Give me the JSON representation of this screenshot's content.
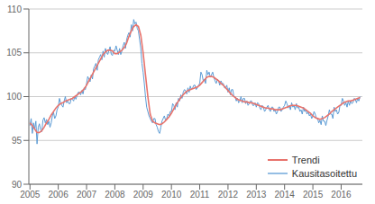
{
  "chart_data": {
    "type": "line",
    "xlim": [
      2004.96,
      2016.75
    ],
    "xticks": [
      2005,
      2006,
      2007,
      2008,
      2009,
      2010,
      2011,
      2012,
      2013,
      2014,
      2015,
      2016
    ],
    "ylim": [
      90,
      110
    ],
    "yticks": [
      90,
      95,
      100,
      105,
      110
    ],
    "grid": true,
    "legend": "lower right",
    "series": [
      {
        "name": "Trendi",
        "color": "#e8736c",
        "x": [
          2005.0,
          2005.083,
          2005.167,
          2005.25,
          2005.333,
          2005.417,
          2005.5,
          2005.583,
          2005.667,
          2005.75,
          2005.833,
          2005.917,
          2006.0,
          2006.083,
          2006.167,
          2006.25,
          2006.333,
          2006.417,
          2006.5,
          2006.583,
          2006.667,
          2006.75,
          2006.833,
          2006.917,
          2007.0,
          2007.083,
          2007.167,
          2007.25,
          2007.333,
          2007.417,
          2007.5,
          2007.583,
          2007.667,
          2007.75,
          2007.833,
          2007.917,
          2008.0,
          2008.083,
          2008.167,
          2008.25,
          2008.333,
          2008.417,
          2008.5,
          2008.583,
          2008.667,
          2008.75,
          2008.833,
          2008.917,
          2009.0,
          2009.083,
          2009.167,
          2009.25,
          2009.333,
          2009.417,
          2009.5,
          2009.583,
          2009.667,
          2009.75,
          2009.833,
          2009.917,
          2010.0,
          2010.083,
          2010.167,
          2010.25,
          2010.333,
          2010.417,
          2010.5,
          2010.583,
          2010.667,
          2010.75,
          2010.833,
          2010.917,
          2011.0,
          2011.083,
          2011.167,
          2011.25,
          2011.333,
          2011.417,
          2011.5,
          2011.583,
          2011.667,
          2011.75,
          2011.833,
          2011.917,
          2012.0,
          2012.083,
          2012.167,
          2012.25,
          2012.333,
          2012.417,
          2012.5,
          2012.583,
          2012.667,
          2012.75,
          2012.833,
          2012.917,
          2013.0,
          2013.083,
          2013.167,
          2013.25,
          2013.333,
          2013.417,
          2013.5,
          2013.583,
          2013.667,
          2013.75,
          2013.833,
          2013.917,
          2014.0,
          2014.083,
          2014.167,
          2014.25,
          2014.333,
          2014.417,
          2014.5,
          2014.583,
          2014.667,
          2014.75,
          2014.833,
          2014.917,
          2015.0,
          2015.083,
          2015.167,
          2015.25,
          2015.333,
          2015.417,
          2015.5,
          2015.583,
          2015.667,
          2015.75,
          2015.833,
          2015.917,
          2016.0,
          2016.083,
          2016.167,
          2016.25,
          2016.333,
          2016.417,
          2016.5,
          2016.583,
          2016.667
        ],
        "values": [
          97.0,
          96.7,
          96.3,
          95.9,
          95.9,
          96.1,
          96.5,
          97.0,
          97.4,
          97.9,
          98.3,
          98.7,
          99.0,
          99.2,
          99.3,
          99.5,
          99.6,
          99.7,
          99.8,
          100.0,
          100.2,
          100.4,
          100.6,
          100.9,
          101.3,
          101.8,
          102.3,
          102.8,
          103.3,
          103.8,
          104.3,
          104.8,
          105.1,
          105.3,
          105.3,
          105.2,
          104.9,
          104.9,
          105.1,
          105.3,
          105.6,
          106.1,
          106.9,
          107.5,
          108.0,
          108.2,
          108.0,
          107.0,
          105.0,
          102.5,
          100.0,
          98.0,
          97.2,
          97.0,
          96.9,
          96.8,
          96.9,
          97.1,
          97.4,
          97.7,
          98.1,
          98.6,
          99.1,
          99.5,
          99.9,
          100.2,
          100.5,
          100.7,
          100.8,
          100.9,
          101.0,
          101.1,
          101.3,
          101.6,
          101.9,
          102.2,
          102.3,
          102.3,
          102.2,
          102.0,
          101.8,
          101.5,
          101.3,
          101.0,
          100.7,
          100.4,
          100.1,
          99.9,
          99.7,
          99.6,
          99.5,
          99.4,
          99.4,
          99.3,
          99.3,
          99.2,
          99.1,
          99.0,
          98.9,
          98.8,
          98.7,
          98.7,
          98.6,
          98.6,
          98.5,
          98.5,
          98.5,
          98.6,
          98.7,
          98.8,
          98.9,
          99.0,
          99.0,
          99.0,
          98.9,
          98.8,
          98.7,
          98.5,
          98.3,
          98.1,
          97.8,
          97.6,
          97.5,
          97.4,
          97.5,
          97.6,
          97.8,
          98.0,
          98.3,
          98.5,
          98.7,
          98.9,
          99.1,
          99.3,
          99.4,
          99.5,
          99.5,
          99.6,
          99.7,
          99.8,
          99.9
        ]
      },
      {
        "name": "Kausitasoitettu",
        "color": "#5b9bd5",
        "x": [
          2005.0,
          2005.042,
          2005.083,
          2005.125,
          2005.167,
          2005.208,
          2005.25,
          2005.292,
          2005.333,
          2005.375,
          2005.417,
          2005.458,
          2005.5,
          2005.542,
          2005.583,
          2005.625,
          2005.667,
          2005.708,
          2005.75,
          2005.792,
          2005.833,
          2005.875,
          2005.917,
          2005.958,
          2006.0,
          2006.042,
          2006.083,
          2006.125,
          2006.167,
          2006.208,
          2006.25,
          2006.292,
          2006.333,
          2006.375,
          2006.417,
          2006.458,
          2006.5,
          2006.542,
          2006.583,
          2006.625,
          2006.667,
          2006.708,
          2006.75,
          2006.792,
          2006.833,
          2006.875,
          2006.917,
          2006.958,
          2007.0,
          2007.042,
          2007.083,
          2007.125,
          2007.167,
          2007.208,
          2007.25,
          2007.292,
          2007.333,
          2007.375,
          2007.417,
          2007.458,
          2007.5,
          2007.542,
          2007.583,
          2007.625,
          2007.667,
          2007.708,
          2007.75,
          2007.792,
          2007.833,
          2007.875,
          2007.917,
          2007.958,
          2008.0,
          2008.042,
          2008.083,
          2008.125,
          2008.167,
          2008.208,
          2008.25,
          2008.292,
          2008.333,
          2008.375,
          2008.417,
          2008.458,
          2008.5,
          2008.542,
          2008.583,
          2008.625,
          2008.667,
          2008.708,
          2008.75,
          2008.792,
          2008.833,
          2008.875,
          2008.917,
          2008.958,
          2009.0,
          2009.042,
          2009.083,
          2009.125,
          2009.167,
          2009.208,
          2009.25,
          2009.292,
          2009.333,
          2009.375,
          2009.417,
          2009.458,
          2009.5,
          2009.542,
          2009.583,
          2009.625,
          2009.667,
          2009.708,
          2009.75,
          2009.792,
          2009.833,
          2009.875,
          2009.917,
          2009.958,
          2010.0,
          2010.042,
          2010.083,
          2010.125,
          2010.167,
          2010.208,
          2010.25,
          2010.292,
          2010.333,
          2010.375,
          2010.417,
          2010.458,
          2010.5,
          2010.542,
          2010.583,
          2010.625,
          2010.667,
          2010.708,
          2010.75,
          2010.792,
          2010.833,
          2010.875,
          2010.917,
          2010.958,
          2011.0,
          2011.042,
          2011.083,
          2011.125,
          2011.167,
          2011.208,
          2011.25,
          2011.292,
          2011.333,
          2011.375,
          2011.417,
          2011.458,
          2011.5,
          2011.542,
          2011.583,
          2011.625,
          2011.667,
          2011.708,
          2011.75,
          2011.792,
          2011.833,
          2011.875,
          2011.917,
          2011.958,
          2012.0,
          2012.042,
          2012.083,
          2012.125,
          2012.167,
          2012.208,
          2012.25,
          2012.292,
          2012.333,
          2012.375,
          2012.417,
          2012.458,
          2012.5,
          2012.542,
          2012.583,
          2012.625,
          2012.667,
          2012.708,
          2012.75,
          2012.792,
          2012.833,
          2012.875,
          2012.917,
          2012.958,
          2013.0,
          2013.042,
          2013.083,
          2013.125,
          2013.167,
          2013.208,
          2013.25,
          2013.292,
          2013.333,
          2013.375,
          2013.417,
          2013.458,
          2013.5,
          2013.542,
          2013.583,
          2013.625,
          2013.667,
          2013.708,
          2013.75,
          2013.792,
          2013.833,
          2013.875,
          2013.917,
          2013.958,
          2014.0,
          2014.042,
          2014.083,
          2014.125,
          2014.167,
          2014.208,
          2014.25,
          2014.292,
          2014.333,
          2014.375,
          2014.417,
          2014.458,
          2014.5,
          2014.542,
          2014.583,
          2014.625,
          2014.667,
          2014.708,
          2014.75,
          2014.792,
          2014.833,
          2014.875,
          2014.917,
          2014.958,
          2015.0,
          2015.042,
          2015.083,
          2015.125,
          2015.167,
          2015.208,
          2015.25,
          2015.292,
          2015.333,
          2015.375,
          2015.417,
          2015.458,
          2015.5,
          2015.542,
          2015.583,
          2015.625,
          2015.667,
          2015.708,
          2015.75,
          2015.792,
          2015.833,
          2015.875,
          2015.917,
          2015.958,
          2016.0,
          2016.042,
          2016.083,
          2016.125,
          2016.167,
          2016.208,
          2016.25,
          2016.292,
          2016.333,
          2016.375,
          2016.417,
          2016.458,
          2016.5,
          2016.542,
          2016.583,
          2016.625,
          2016.667
        ],
        "values": [
          96.7,
          97.5,
          95.8,
          97.0,
          96.3,
          97.2,
          94.6,
          96.5,
          96.9,
          96.2,
          96.0,
          97.3,
          97.6,
          97.0,
          97.4,
          96.8,
          97.2,
          96.5,
          97.0,
          97.8,
          98.2,
          97.5,
          97.8,
          98.5,
          98.8,
          99.8,
          99.3,
          99.0,
          98.8,
          99.5,
          100.0,
          99.3,
          99.5,
          99.2,
          99.2,
          99.8,
          99.7,
          99.5,
          100.0,
          99.7,
          100.2,
          100.5,
          100.5,
          100.2,
          100.7,
          100.3,
          101.0,
          100.8,
          101.5,
          102.3,
          102.0,
          101.7,
          102.5,
          102.0,
          103.2,
          103.5,
          103.8,
          103.0,
          104.2,
          104.5,
          104.8,
          104.2,
          105.2,
          104.5,
          105.5,
          105.0,
          104.8,
          105.3,
          105.7,
          104.8,
          104.7,
          105.3,
          105.2,
          105.8,
          105.3,
          104.8,
          105.5,
          104.8,
          105.2,
          105.8,
          106.2,
          105.5,
          106.5,
          107.0,
          107.3,
          106.8,
          108.2,
          107.5,
          108.8,
          108.3,
          108.5,
          107.8,
          107.5,
          106.5,
          105.5,
          103.8,
          102.8,
          101.5,
          100.0,
          98.8,
          98.3,
          97.8,
          97.5,
          97.2,
          97.0,
          97.5,
          97.5,
          96.8,
          96.5,
          96.0,
          95.8,
          96.5,
          97.2,
          97.5,
          97.8,
          97.3,
          97.5,
          98.0,
          97.8,
          98.3,
          98.3,
          99.2,
          99.0,
          98.5,
          99.3,
          98.8,
          99.8,
          99.5,
          100.2,
          99.8,
          100.5,
          100.8,
          100.7,
          100.3,
          101.0,
          100.5,
          101.2,
          100.8,
          101.0,
          101.3,
          101.3,
          100.8,
          101.0,
          101.3,
          101.5,
          102.8,
          102.5,
          101.8,
          102.0,
          101.5,
          103.0,
          102.5,
          102.8,
          102.2,
          102.5,
          102.8,
          102.2,
          101.8,
          101.5,
          102.0,
          101.8,
          101.3,
          101.8,
          101.5,
          101.5,
          101.0,
          101.0,
          101.3,
          100.5,
          101.0,
          100.2,
          100.8,
          100.8,
          100.0,
          100.0,
          99.5,
          99.8,
          99.3,
          99.5,
          100.0,
          99.3,
          99.8,
          99.8,
          99.2,
          99.5,
          99.0,
          99.2,
          99.5,
          99.5,
          99.0,
          99.0,
          99.3,
          98.8,
          99.3,
          99.2,
          98.7,
          98.5,
          99.0,
          98.8,
          98.3,
          98.5,
          98.8,
          99.0,
          98.5,
          98.3,
          98.8,
          98.8,
          98.3,
          98.5,
          98.0,
          98.3,
          98.8,
          98.8,
          98.3,
          98.5,
          98.8,
          99.0,
          99.5,
          99.2,
          98.7,
          99.0,
          98.5,
          99.3,
          98.8,
          99.0,
          98.5,
          99.2,
          98.7,
          98.8,
          98.3,
          98.5,
          98.0,
          98.8,
          98.3,
          98.5,
          98.0,
          98.3,
          97.8,
          98.0,
          97.5,
          97.8,
          98.3,
          98.0,
          97.5,
          97.5,
          97.0,
          97.3,
          96.8,
          97.8,
          97.2,
          97.2,
          96.7,
          97.3,
          97.8,
          98.5,
          98.0,
          98.0,
          97.5,
          98.8,
          98.3,
          98.5,
          98.0,
          98.2,
          99.0,
          99.0,
          99.8,
          99.5,
          99.0,
          99.3,
          98.8,
          99.5,
          99.0,
          99.5,
          99.2,
          99.3,
          99.8,
          99.7,
          99.3,
          99.8,
          99.5,
          100.0
        ]
      }
    ]
  }
}
